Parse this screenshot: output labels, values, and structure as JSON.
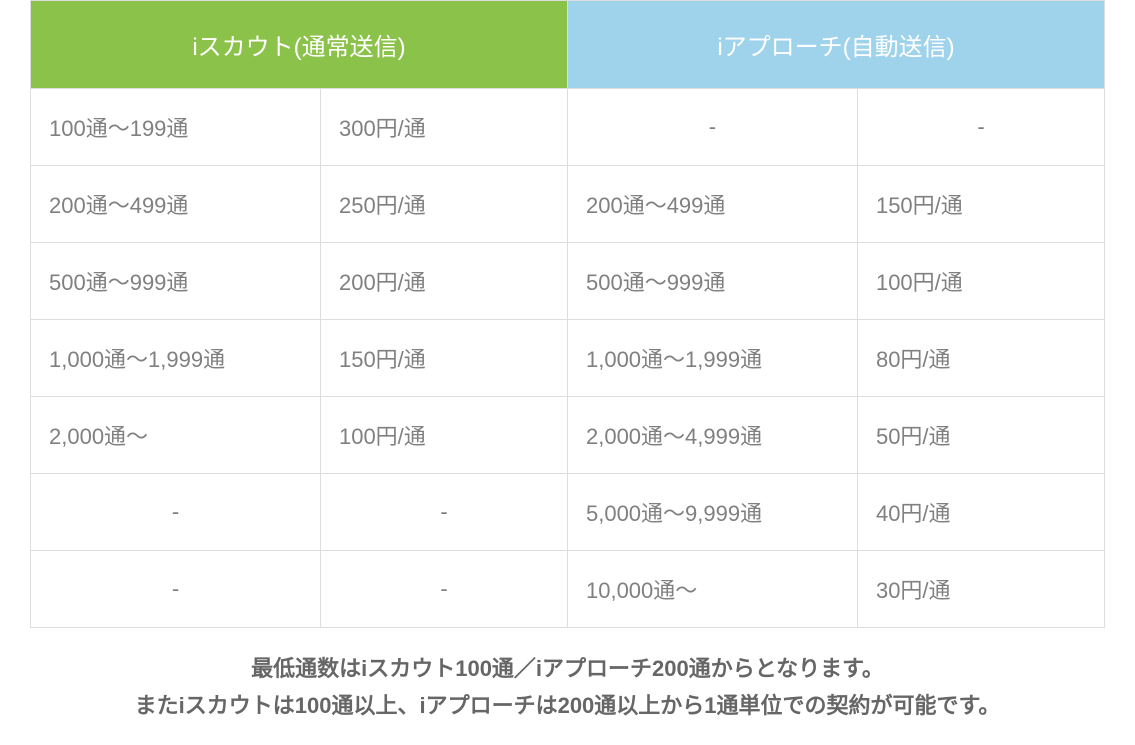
{
  "table": {
    "headers": {
      "left": "iスカウト(通常送信)",
      "right": "iアプローチ(自動送信)"
    },
    "header_colors": {
      "left": "#8bc34a",
      "right": "#9fd3ec"
    },
    "border_color": "#dddddd",
    "text_color": "#808080",
    "cell_fontsize": 22,
    "header_fontsize": 24,
    "columns": [
      "scout_range",
      "scout_price",
      "approach_range",
      "approach_price"
    ],
    "column_widths_pct": [
      27,
      23,
      27,
      23
    ],
    "rows": [
      {
        "scout_range": "100通〜199通",
        "scout_price": "300円/通",
        "approach_range": "-",
        "approach_price": "-",
        "approach_center": true
      },
      {
        "scout_range": "200通〜499通",
        "scout_price": "250円/通",
        "approach_range": "200通〜499通",
        "approach_price": "150円/通"
      },
      {
        "scout_range": "500通〜999通",
        "scout_price": "200円/通",
        "approach_range": "500通〜999通",
        "approach_price": "100円/通"
      },
      {
        "scout_range": "1,000通〜1,999通",
        "scout_price": "150円/通",
        "approach_range": "1,000通〜1,999通",
        "approach_price": "80円/通"
      },
      {
        "scout_range": "2,000通〜",
        "scout_price": "100円/通",
        "approach_range": "2,000通〜4,999通",
        "approach_price": "50円/通"
      },
      {
        "scout_range": "-",
        "scout_price": "-",
        "approach_range": "5,000通〜9,999通",
        "approach_price": "40円/通",
        "scout_center": true
      },
      {
        "scout_range": "-",
        "scout_price": "-",
        "approach_range": "10,000通〜",
        "approach_price": "30円/通",
        "scout_center": true
      }
    ]
  },
  "footnote": {
    "line1": "最低通数はiスカウト100通／iアプローチ200通からとなります。",
    "line2": "またiスカウトは100通以上、iアプローチは200通以上から1通単位での契約が可能です。",
    "color": "#666666",
    "fontsize": 22,
    "fontweight": 700
  }
}
